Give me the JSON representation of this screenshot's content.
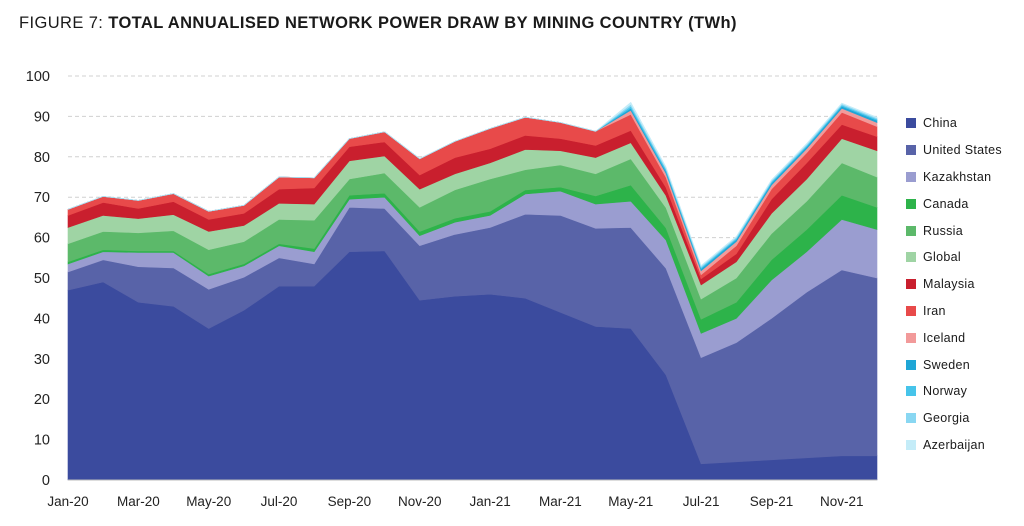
{
  "title": {
    "prefix": "FIGURE 7: ",
    "main": "TOTAL ANNUALISED NETWORK POWER DRAW BY MINING COUNTRY (TWh)"
  },
  "chart_data": {
    "type": "area",
    "stacked": true,
    "title": "TOTAL ANNUALISED NETWORK POWER DRAW BY MINING COUNTRY (TWh)",
    "xlabel": "",
    "ylabel": "",
    "ylim": [
      0,
      100
    ],
    "yticks": [
      0,
      10,
      20,
      30,
      40,
      50,
      60,
      70,
      80,
      90,
      100
    ],
    "grid": "horizontal dashed",
    "legend_position": "right",
    "x": [
      "Jan-20",
      "Feb-20",
      "Mar-20",
      "Apr-20",
      "May-20",
      "Jun-20",
      "Jul-20",
      "Aug-20",
      "Sep-20",
      "Oct-20",
      "Nov-20",
      "Dec-20",
      "Jan-21",
      "Feb-21",
      "Mar-21",
      "Apr-21",
      "May-21",
      "Jun-21",
      "Jul-21",
      "Aug-21",
      "Sep-21",
      "Oct-21",
      "Nov-21",
      "Dec-21"
    ],
    "x_tick_labels": [
      "Jan-20",
      "Mar-20",
      "May-20",
      "Jul-20",
      "Sep-20",
      "Nov-20",
      "Jan-21",
      "Mar-21",
      "May-21",
      "Jul-21",
      "Sep-21",
      "Nov-21"
    ],
    "series": [
      {
        "name": "China",
        "color": "#3b4b9e",
        "values": [
          47,
          49,
          44,
          43,
          37.5,
          42,
          48,
          48,
          56.5,
          56.7,
          44.5,
          45.5,
          46,
          45,
          41.5,
          38,
          37.5,
          26,
          4,
          4.5,
          5,
          5.5,
          6,
          6
        ]
      },
      {
        "name": "United States",
        "color": "#5863a8",
        "values": [
          4.5,
          5.5,
          8.8,
          9.5,
          9.7,
          8.2,
          7,
          5.5,
          11,
          10.5,
          13.5,
          15.3,
          16.5,
          20.8,
          24,
          24.3,
          25,
          26.4,
          26.3,
          29.5,
          35,
          41,
          46,
          44
        ]
      },
      {
        "name": "Kazakhstan",
        "color": "#9a9dd0",
        "values": [
          2,
          2,
          3.5,
          3.8,
          3.3,
          2.8,
          3,
          3,
          2,
          2.8,
          2.5,
          3,
          3,
          5,
          6,
          6,
          6.5,
          7,
          6,
          6,
          9.5,
          10,
          12.5,
          12
        ]
      },
      {
        "name": "Canada",
        "color": "#2db34a",
        "values": [
          0.5,
          0.5,
          0.4,
          0.4,
          0.5,
          0.5,
          0.5,
          0.8,
          1,
          1,
          1,
          1,
          1,
          1,
          1,
          2,
          4,
          3,
          3.5,
          4,
          5,
          5.5,
          6,
          5.5
        ]
      },
      {
        "name": "Russia",
        "color": "#5cb96a",
        "values": [
          4.5,
          4.5,
          4.5,
          5,
          6,
          5.5,
          6,
          7,
          4,
          5,
          6,
          7,
          8,
          5,
          5.5,
          5.5,
          6.5,
          5,
          5,
          6,
          6.5,
          7,
          8,
          7.5
        ]
      },
      {
        "name": "Global",
        "color": "#9fd4a4",
        "values": [
          4,
          4,
          3.5,
          4,
          4.5,
          4,
          4,
          4,
          4.5,
          4.2,
          4.5,
          4,
          4,
          5,
          3.5,
          4,
          4,
          3,
          3.5,
          4,
          5,
          5.5,
          6,
          6.5
        ]
      },
      {
        "name": "Malaysia",
        "color": "#c91f2e",
        "values": [
          3,
          3.2,
          2.5,
          3.2,
          3,
          3,
          3.5,
          4,
          3.5,
          3.5,
          3.5,
          4,
          3.5,
          3.5,
          3,
          3,
          3,
          2,
          1.5,
          2,
          3.5,
          4,
          3.5,
          3.5
        ]
      },
      {
        "name": "Iran",
        "color": "#e84a4a",
        "values": [
          1.5,
          1.5,
          2,
          2,
          2,
          2,
          3,
          2.5,
          2,
          2.5,
          4,
          4,
          5,
          4.5,
          4,
          3.5,
          4,
          2.5,
          1,
          2,
          2.5,
          2.5,
          3,
          2.5
        ]
      },
      {
        "name": "Iceland",
        "color": "#f29a9a",
        "values": [
          0,
          0,
          0,
          0,
          0,
          0,
          0,
          0,
          0,
          0,
          0,
          0,
          0,
          0,
          0,
          0,
          1,
          1,
          1,
          1,
          1,
          1,
          1,
          1
        ]
      },
      {
        "name": "Sweden",
        "color": "#1fa6d6",
        "values": [
          0,
          0,
          0,
          0,
          0,
          0,
          0,
          0,
          0,
          0,
          0,
          0,
          0,
          0,
          0,
          0,
          0.5,
          0.5,
          0.5,
          0.5,
          0.5,
          0.5,
          0.5,
          0.5
        ]
      },
      {
        "name": "Norway",
        "color": "#46c4ea",
        "values": [
          0,
          0,
          0,
          0,
          0,
          0,
          0,
          0,
          0,
          0,
          0,
          0,
          0,
          0,
          0,
          0,
          0.5,
          0.5,
          0.3,
          0.3,
          0.3,
          0.3,
          0.3,
          0.3
        ]
      },
      {
        "name": "Georgia",
        "color": "#89d7f2",
        "values": [
          0,
          0,
          0,
          0,
          0,
          0,
          0,
          0,
          0,
          0,
          0,
          0,
          0,
          0,
          0,
          0,
          0.5,
          0.3,
          0.3,
          0.3,
          0.3,
          0.3,
          0.3,
          0.3
        ]
      },
      {
        "name": "Azerbaijan",
        "color": "#c4ecf8",
        "values": [
          0,
          0,
          0,
          0,
          0,
          0,
          0,
          0,
          0,
          0,
          0,
          0,
          0,
          0,
          0,
          0,
          0.5,
          0.3,
          0.2,
          0.2,
          0.2,
          0.2,
          0.2,
          0.2
        ]
      }
    ]
  }
}
